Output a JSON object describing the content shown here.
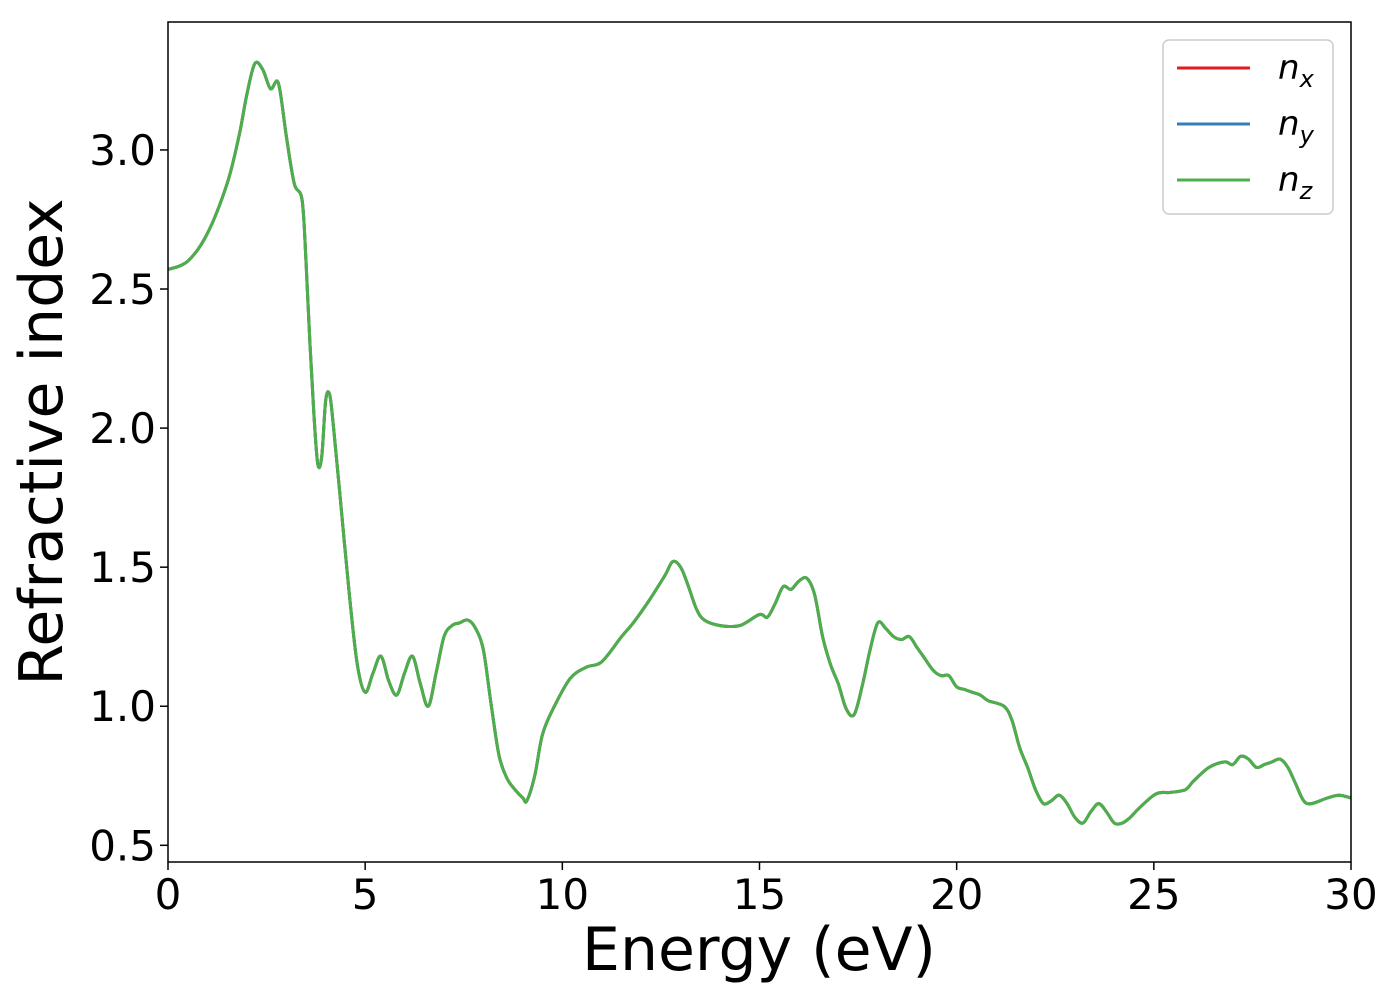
{
  "chart_data": {
    "type": "line",
    "xlabel": "Energy (eV)",
    "ylabel": "Refractive index",
    "xlim": [
      0,
      30
    ],
    "ylim": [
      0.44,
      3.46
    ],
    "xticks": [
      "0",
      "5",
      "10",
      "15",
      "20",
      "25",
      "30"
    ],
    "yticks": [
      "0.5",
      "1.0",
      "1.5",
      "2.0",
      "2.5",
      "3.0"
    ],
    "grid": false,
    "legend_position": "top-right",
    "series": [
      {
        "name": "n_x",
        "label_base": "n",
        "label_sub": "x",
        "color": "#e41a1c"
      },
      {
        "name": "n_y",
        "label_base": "n",
        "label_sub": "y",
        "color": "#377eb8"
      },
      {
        "name": "n_z",
        "label_base": "n",
        "label_sub": "z",
        "color": "#4daf4a"
      }
    ],
    "curve": {
      "x": [
        0,
        0.5,
        1.0,
        1.5,
        1.8,
        2.0,
        2.2,
        2.4,
        2.6,
        2.8,
        3.0,
        3.2,
        3.4,
        3.5,
        3.6,
        3.7,
        3.8,
        3.9,
        4.0,
        4.1,
        4.2,
        4.4,
        4.6,
        4.8,
        5.0,
        5.2,
        5.4,
        5.6,
        5.8,
        6.0,
        6.2,
        6.4,
        6.6,
        6.8,
        7.0,
        7.2,
        7.4,
        7.6,
        7.8,
        8.0,
        8.2,
        8.4,
        8.6,
        8.8,
        9.0,
        9.1,
        9.3,
        9.5,
        9.8,
        10.2,
        10.6,
        11.0,
        11.5,
        11.8,
        12.2,
        12.6,
        12.8,
        13.0,
        13.2,
        13.4,
        13.6,
        14.0,
        14.5,
        15.0,
        15.2,
        15.4,
        15.6,
        15.8,
        16.0,
        16.2,
        16.4,
        16.6,
        16.8,
        17.0,
        17.2,
        17.4,
        17.6,
        17.8,
        18.0,
        18.2,
        18.4,
        18.6,
        18.8,
        19.0,
        19.2,
        19.4,
        19.6,
        19.8,
        20.0,
        20.2,
        20.4,
        20.6,
        20.8,
        21.2,
        21.4,
        21.6,
        21.8,
        22.0,
        22.2,
        22.4,
        22.6,
        22.8,
        23.0,
        23.2,
        23.4,
        23.6,
        23.8,
        24.0,
        24.2,
        24.4,
        24.6,
        25.0,
        25.2,
        25.4,
        25.8,
        26.0,
        26.4,
        26.8,
        27.0,
        27.2,
        27.4,
        27.6,
        27.8,
        28.0,
        28.2,
        28.4,
        28.6,
        28.8,
        29.0,
        29.4,
        29.7,
        30.0
      ],
      "y": [
        2.57,
        2.6,
        2.7,
        2.88,
        3.05,
        3.2,
        3.31,
        3.29,
        3.22,
        3.24,
        3.05,
        2.88,
        2.82,
        2.6,
        2.3,
        2.05,
        1.87,
        1.9,
        2.1,
        2.12,
        2.0,
        1.7,
        1.4,
        1.15,
        1.05,
        1.12,
        1.18,
        1.09,
        1.04,
        1.12,
        1.18,
        1.08,
        1.0,
        1.12,
        1.25,
        1.29,
        1.3,
        1.31,
        1.28,
        1.2,
        1.0,
        0.82,
        0.74,
        0.7,
        0.67,
        0.66,
        0.75,
        0.9,
        1.0,
        1.1,
        1.14,
        1.16,
        1.25,
        1.3,
        1.38,
        1.47,
        1.52,
        1.5,
        1.43,
        1.35,
        1.31,
        1.29,
        1.29,
        1.33,
        1.32,
        1.37,
        1.43,
        1.42,
        1.45,
        1.46,
        1.4,
        1.25,
        1.15,
        1.08,
        0.99,
        0.97,
        1.07,
        1.2,
        1.3,
        1.28,
        1.25,
        1.24,
        1.25,
        1.21,
        1.17,
        1.13,
        1.11,
        1.11,
        1.07,
        1.06,
        1.05,
        1.04,
        1.02,
        1.0,
        0.95,
        0.85,
        0.78,
        0.7,
        0.65,
        0.66,
        0.68,
        0.65,
        0.6,
        0.58,
        0.62,
        0.65,
        0.62,
        0.58,
        0.58,
        0.6,
        0.63,
        0.68,
        0.69,
        0.69,
        0.7,
        0.73,
        0.78,
        0.8,
        0.79,
        0.82,
        0.81,
        0.78,
        0.79,
        0.8,
        0.81,
        0.78,
        0.72,
        0.66,
        0.65,
        0.67,
        0.68,
        0.67
      ]
    }
  }
}
